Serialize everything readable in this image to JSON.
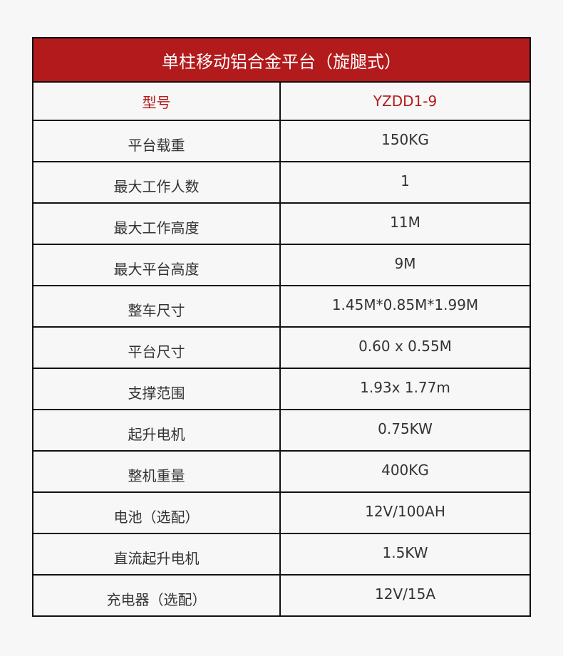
{
  "title": "单柱移动铝合金平台（旋腿式）",
  "colors": {
    "header_bg": "#b31a1b",
    "accent_text": "#b31a1b"
  },
  "rows": [
    {
      "label": "型号",
      "value": "YZDD1-9"
    },
    {
      "label": "平台载重",
      "value": "150KG"
    },
    {
      "label": "最大工作人数",
      "value": "1"
    },
    {
      "label": "最大工作高度",
      "value": "11M"
    },
    {
      "label": "最大平台高度",
      "value": "9M"
    },
    {
      "label": "整车尺寸",
      "value": "1.45M*0.85M*1.99M"
    },
    {
      "label": "平台尺寸",
      "value": "0.60 x 0.55M"
    },
    {
      "label": "支撑范围",
      "value": "1.93x 1.77m"
    },
    {
      "label": "起升电机",
      "value": "0.75KW"
    },
    {
      "label": "整机重量",
      "value": "400KG"
    },
    {
      "label": "电池（选配）",
      "value": "12V/100AH"
    },
    {
      "label": "直流起升电机",
      "value": "1.5KW"
    },
    {
      "label": "充电器（选配）",
      "value": "12V/15A"
    }
  ]
}
